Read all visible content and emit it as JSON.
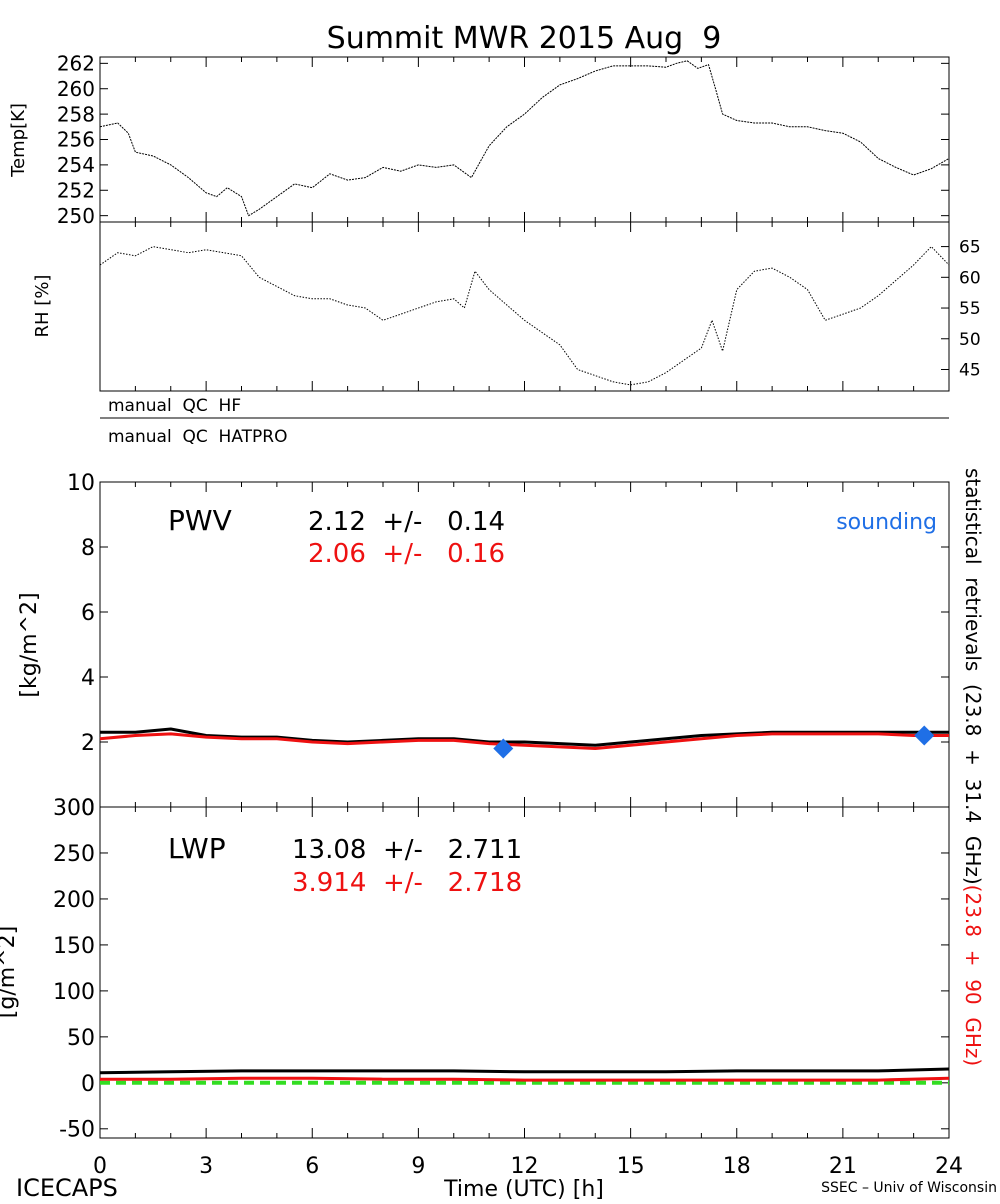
{
  "title": "Summit MWR 2015 Aug  9",
  "footer": {
    "left": "ICECAPS",
    "center": "Time (UTC) [h]",
    "right": "SSEC – Univ of Wisconsin"
  },
  "colors": {
    "black": "#000000",
    "red": "#ee1111",
    "blue": "#1f6fe6",
    "green": "#33dd22"
  },
  "chart_data": [
    {
      "type": "line",
      "ylabel": "Temp[K]",
      "xlim": [
        0,
        24
      ],
      "ylim": [
        249.5,
        262.5
      ],
      "yticks": [
        "250",
        "252",
        "254",
        "256",
        "258",
        "260",
        "262"
      ],
      "series": [
        {
          "x": [
            0,
            0.5,
            0.8,
            1.0,
            1.5,
            2.0,
            2.5,
            3.0,
            3.3,
            3.6,
            4.0,
            4.2,
            4.5,
            5.0,
            5.5,
            6.0,
            6.5,
            7.0,
            7.5,
            8.0,
            8.5,
            9.0,
            9.5,
            10.0,
            10.5,
            11.0,
            11.5,
            12.0,
            12.5,
            13.0,
            13.5,
            14.0,
            14.5,
            15.0,
            15.5,
            16.0,
            16.3,
            16.6,
            16.9,
            17.2,
            17.4,
            17.6,
            18.0,
            18.5,
            19.0,
            19.5,
            20.0,
            20.5,
            21.0,
            21.5,
            22.0,
            22.5,
            23.0,
            23.5,
            24.0
          ],
          "values": [
            257.0,
            257.3,
            256.5,
            255.0,
            254.7,
            254.0,
            253.0,
            251.8,
            251.5,
            252.2,
            251.5,
            250.0,
            250.5,
            251.5,
            252.5,
            252.2,
            253.3,
            252.8,
            253.0,
            253.8,
            253.5,
            254.0,
            253.8,
            254.0,
            253.0,
            255.5,
            257.0,
            258.0,
            259.3,
            260.3,
            260.8,
            261.4,
            261.8,
            261.8,
            261.8,
            261.7,
            262.0,
            262.2,
            261.6,
            261.9,
            260.0,
            258.0,
            257.5,
            257.3,
            257.3,
            257.0,
            257.0,
            256.7,
            256.5,
            255.8,
            254.5,
            253.8,
            253.2,
            253.7,
            254.5
          ]
        }
      ]
    },
    {
      "type": "line",
      "ylabel": "RH [%]",
      "xlim": [
        0,
        24
      ],
      "ylim": [
        41.5,
        69
      ],
      "yticks": [
        "45",
        "50",
        "55",
        "60",
        "65"
      ],
      "series": [
        {
          "x": [
            0,
            0.5,
            1.0,
            1.5,
            2.0,
            2.5,
            3.0,
            3.5,
            4.0,
            4.5,
            5.0,
            5.5,
            6.0,
            6.5,
            7.0,
            7.5,
            8.0,
            8.5,
            9.0,
            9.5,
            10.0,
            10.3,
            10.6,
            11.0,
            11.5,
            12.0,
            12.5,
            13.0,
            13.5,
            14.0,
            14.5,
            15.0,
            15.5,
            16.0,
            16.5,
            17.0,
            17.3,
            17.6,
            18.0,
            18.5,
            19.0,
            19.5,
            20.0,
            20.5,
            21.0,
            21.5,
            22.0,
            22.5,
            23.0,
            23.5,
            24.0
          ],
          "values": [
            62.0,
            64.0,
            63.5,
            65.0,
            64.5,
            64.0,
            64.5,
            64.0,
            63.5,
            60.0,
            58.5,
            57.0,
            56.5,
            56.5,
            55.5,
            55.0,
            53.0,
            54.0,
            55.0,
            56.0,
            56.5,
            55.0,
            61.0,
            58.0,
            55.5,
            53.0,
            51.0,
            49.0,
            45.0,
            44.0,
            43.0,
            42.5,
            43.0,
            44.5,
            46.5,
            48.5,
            53.0,
            48.0,
            58.0,
            61.0,
            61.5,
            60.0,
            58.0,
            53.0,
            54.0,
            55.0,
            57.0,
            59.5,
            62.0,
            65.0,
            62.0
          ]
        }
      ]
    },
    {
      "type": "table",
      "rows": [
        "manual  QC  HF",
        "manual  QC  HATPRO"
      ]
    },
    {
      "type": "line",
      "ylabel": "[kg/m^2]",
      "xlim": [
        0,
        24
      ],
      "ylim": [
        0,
        10
      ],
      "yticks": [
        "0",
        "2",
        "4",
        "6",
        "8",
        "10"
      ],
      "annotations": {
        "label": "PWV",
        "black": "2.12  +/-   0.14",
        "red": "2.06  +/-   0.16",
        "sounding": "sounding"
      },
      "series": [
        {
          "color": "black",
          "x": [
            0,
            1,
            2,
            3,
            4,
            5,
            6,
            7,
            8,
            9,
            10,
            11,
            12,
            13,
            14,
            15,
            16,
            17,
            18,
            19,
            20,
            21,
            22,
            23,
            24
          ],
          "values": [
            2.3,
            2.3,
            2.4,
            2.2,
            2.15,
            2.15,
            2.05,
            2.0,
            2.05,
            2.1,
            2.1,
            2.0,
            2.0,
            1.95,
            1.9,
            2.0,
            2.1,
            2.2,
            2.25,
            2.3,
            2.3,
            2.3,
            2.3,
            2.3,
            2.3
          ]
        },
        {
          "color": "red",
          "x": [
            0,
            1,
            2,
            3,
            4,
            5,
            6,
            7,
            8,
            9,
            10,
            11,
            12,
            13,
            14,
            15,
            16,
            17,
            18,
            19,
            20,
            21,
            22,
            23,
            24
          ],
          "values": [
            2.1,
            2.2,
            2.25,
            2.15,
            2.1,
            2.1,
            2.0,
            1.95,
            2.0,
            2.05,
            2.05,
            1.95,
            1.9,
            1.85,
            1.8,
            1.9,
            2.0,
            2.1,
            2.2,
            2.25,
            2.25,
            2.25,
            2.25,
            2.2,
            2.2
          ]
        },
        {
          "color": "blue",
          "type": "scatter",
          "x": [
            11.4,
            23.3
          ],
          "values": [
            1.8,
            2.2
          ]
        }
      ]
    },
    {
      "type": "line",
      "ylabel": "[g/m^2]",
      "xlabel": "Time (UTC) [h]",
      "xlim": [
        0,
        24
      ],
      "ylim": [
        -60,
        300
      ],
      "yticks": [
        "-50",
        "0",
        "50",
        "100",
        "150",
        "200",
        "250",
        "300"
      ],
      "xticks": [
        "0",
        "3",
        "6",
        "9",
        "12",
        "15",
        "18",
        "21",
        "24"
      ],
      "annotations": {
        "label": "LWP",
        "black": "13.08  +/-   2.711",
        "red": "3.914  +/-   2.718"
      },
      "series": [
        {
          "color": "black",
          "x": [
            0,
            2,
            4,
            6,
            8,
            10,
            12,
            14,
            16,
            18,
            20,
            22,
            24
          ],
          "values": [
            11,
            12,
            13,
            13,
            13,
            13,
            12,
            12,
            12,
            13,
            13,
            13,
            15
          ]
        },
        {
          "color": "red",
          "x": [
            0,
            2,
            4,
            6,
            8,
            10,
            12,
            14,
            16,
            18,
            20,
            22,
            24
          ],
          "values": [
            4,
            4,
            5,
            5,
            4,
            4,
            3,
            3,
            3,
            3,
            3,
            3,
            5
          ]
        },
        {
          "color": "green",
          "x": [
            0,
            24
          ],
          "values": [
            0,
            0
          ]
        }
      ]
    }
  ],
  "right_label": {
    "black": "statistical  retrievals  (23.8  +  31.4  GHz)",
    "red": "(23.8  +  90  GHz)"
  }
}
